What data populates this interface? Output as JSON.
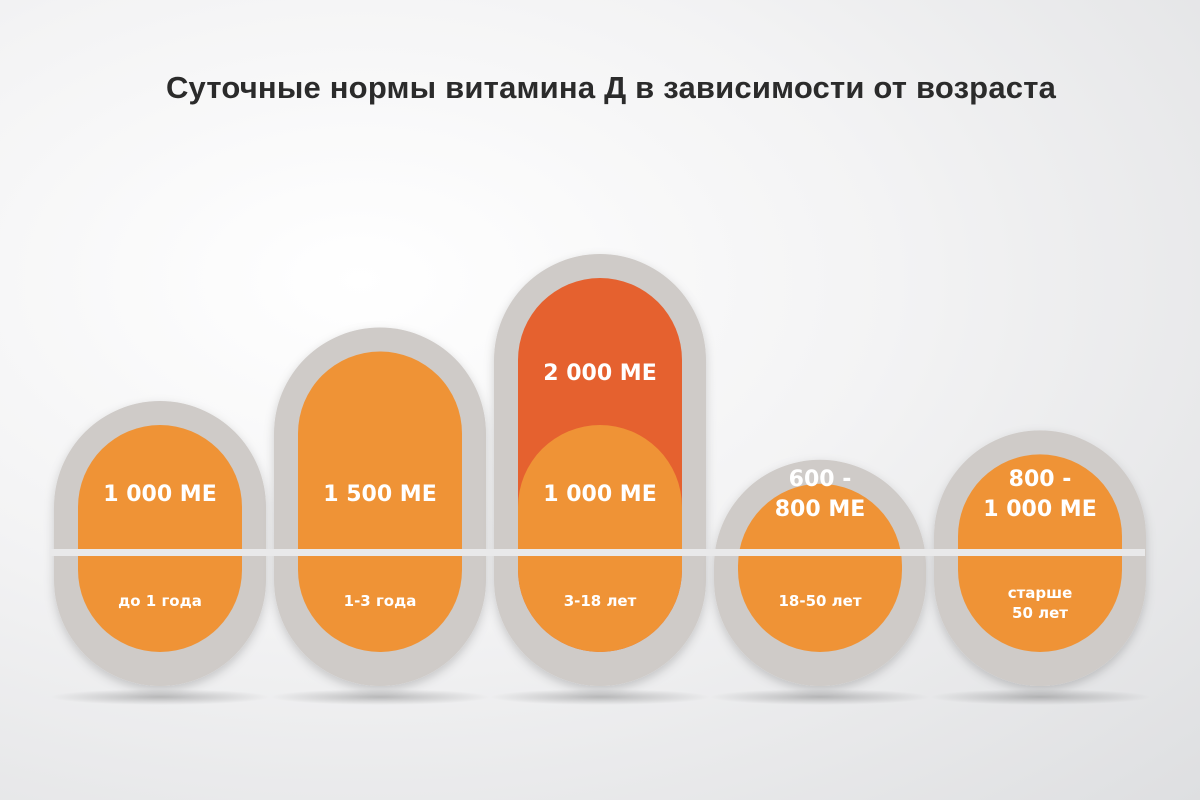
{
  "title": "Суточные нормы витамина Д в зависимости от возраста",
  "colors": {
    "orange": "#ef9336",
    "highlight": "#e5612f",
    "frame": "#cfcbc8",
    "divider": "#e9e9ea",
    "text": "#ffffff"
  },
  "chart_data": {
    "type": "bar",
    "title": "Суточные нормы витамина Д в зависимости от возраста",
    "categories": [
      "до 1 года",
      "1-3 года",
      "3-18 лет",
      "18-50 лет",
      "старше 50 лет"
    ],
    "category_lines": [
      [
        "до 1 года"
      ],
      [
        "1-3 года"
      ],
      [
        "3-18 лет"
      ],
      [
        "18-50 лет"
      ],
      [
        "старше",
        "50 лет"
      ]
    ],
    "value_lines": [
      [
        "1 000 МЕ"
      ],
      [
        "1 500 МЕ"
      ],
      [
        "1 000 МЕ"
      ],
      [
        "600 -",
        "800 МЕ"
      ],
      [
        "800 -",
        "1 000 МЕ"
      ]
    ],
    "series": [
      {
        "values": [
          1000,
          1500,
          1000,
          600,
          800
        ]
      },
      {
        "values": [
          null,
          null,
          2000,
          null,
          null
        ]
      }
    ],
    "series_labels": [
      null,
      null,
      [
        "2 000 МЕ"
      ],
      null,
      null
    ],
    "ranges": [
      null,
      null,
      null,
      [
        600,
        800
      ],
      [
        800,
        1000
      ]
    ]
  }
}
